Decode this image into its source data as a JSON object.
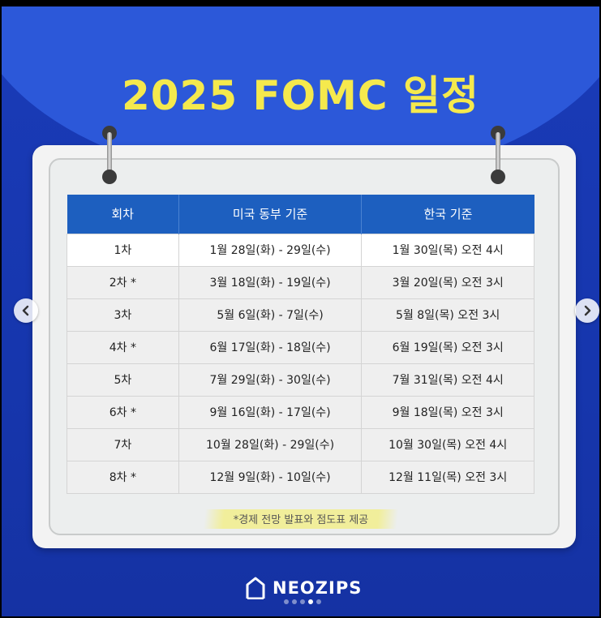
{
  "title": "2025 FOMC 일정",
  "table": {
    "headers": [
      "회차",
      "미국 동부 기준",
      "한국 기준"
    ],
    "rows": [
      [
        "1차",
        "1월 28일(화) - 29일(수)",
        "1월 30일(목) 오전 4시"
      ],
      [
        "2차 *",
        "3월 18일(화) - 19일(수)",
        "3월 20일(목) 오전 3시"
      ],
      [
        "3차",
        "5월 6일(화) - 7일(수)",
        "5월 8일(목) 오전 3시"
      ],
      [
        "4차 *",
        "6월 17일(화) - 18일(수)",
        "6월 19일(목) 오전 3시"
      ],
      [
        "5차",
        "7월 29일(화) - 30일(수)",
        "7월 31일(목) 오전 4시"
      ],
      [
        "6차 *",
        "9월 16일(화) - 17일(수)",
        "9월 18일(목) 오전 3시"
      ],
      [
        "7차",
        "10월 28일(화) - 29일(수)",
        "10월 30일(목) 오전 4시"
      ],
      [
        "8차 *",
        "12월 9일(화) - 10일(수)",
        "12월 11일(목) 오전 3시"
      ]
    ]
  },
  "footnote": "*경제 전망 발표와 점도표 제공",
  "brand": "NEOZIPS",
  "carousel": {
    "total": 5,
    "active": 4
  },
  "icons": {
    "prev": "chevron-left-icon",
    "next": "chevron-right-icon",
    "logo": "house-logo-icon"
  },
  "colors": {
    "background": "#1a3bb8",
    "title": "#f5e94d",
    "header": "#1d5fbf",
    "highlight": "#f1ee9b"
  }
}
